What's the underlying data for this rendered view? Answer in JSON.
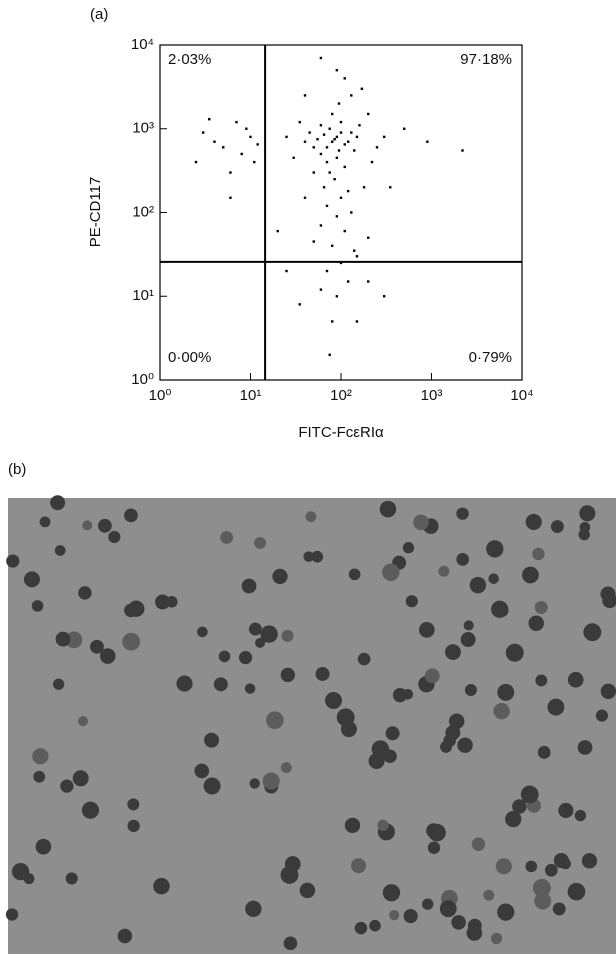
{
  "chart_data": {
    "type": "scatter",
    "panel_label": "(a)",
    "xlabel": "FITC-FcεRIα",
    "ylabel": "PE-CD117",
    "xlim": [
      1,
      10000
    ],
    "ylim": [
      1,
      10000
    ],
    "log_x": true,
    "log_y": true,
    "color": "#000000",
    "xticks": [
      {
        "value": 1,
        "label": "10⁰"
      },
      {
        "value": 10,
        "label": "10¹"
      },
      {
        "value": 100,
        "label": "10²"
      },
      {
        "value": 1000,
        "label": "10³"
      },
      {
        "value": 10000,
        "label": "10⁴"
      }
    ],
    "yticks": [
      {
        "value": 1,
        "label": "10⁰"
      },
      {
        "value": 10,
        "label": "10¹"
      },
      {
        "value": 100,
        "label": "10²"
      },
      {
        "value": 1000,
        "label": "10³"
      },
      {
        "value": 10000,
        "label": "10⁴"
      }
    ],
    "gate_x": 14.5,
    "gate_y": 25.7,
    "quadrant_labels": {
      "upper_left": "2·03%",
      "upper_right": "97·18%",
      "lower_left": "0·00%",
      "lower_right": "0·79%"
    },
    "x": [
      80,
      90,
      70,
      100,
      60,
      110,
      75,
      95,
      85,
      65,
      120,
      50,
      130,
      70,
      100,
      90,
      55,
      140,
      80,
      60,
      110,
      45,
      150,
      75,
      95,
      40,
      160,
      85,
      65,
      120,
      50,
      100,
      70,
      90,
      40,
      130,
      60,
      110,
      80,
      50,
      140,
      100,
      70,
      120,
      90,
      60,
      80,
      75,
      150,
      200,
      180,
      220,
      250,
      200,
      170,
      90,
      60,
      110,
      130,
      35,
      30,
      25,
      40,
      300,
      900,
      2200,
      500,
      350,
      20,
      25,
      35,
      3,
      5,
      7,
      8,
      4,
      10,
      6,
      2.5,
      9,
      12,
      3.5,
      11,
      6,
      200,
      300,
      150
    ],
    "y": [
      700,
      800,
      600,
      900,
      500,
      650,
      1000,
      550,
      750,
      850,
      700,
      600,
      900,
      400,
      1200,
      450,
      750,
      550,
      1500,
      1100,
      350,
      900,
      800,
      300,
      2000,
      700,
      1100,
      250,
      200,
      180,
      300,
      150,
      120,
      90,
      150,
      100,
      70,
      60,
      40,
      45,
      35,
      25,
      20,
      15,
      10,
      12,
      5,
      2,
      30,
      50,
      200,
      400,
      600,
      1500,
      3000,
      5000,
      7000,
      4000,
      2500,
      1200,
      450,
      800,
      2500,
      800,
      700,
      550,
      1000,
      200,
      60,
      20,
      8,
      900,
      600,
      1200,
      500,
      700,
      800,
      300,
      400,
      1000,
      650,
      1300,
      400,
      150,
      15,
      10,
      5
    ]
  },
  "panel_b": {
    "label": "(b)"
  }
}
